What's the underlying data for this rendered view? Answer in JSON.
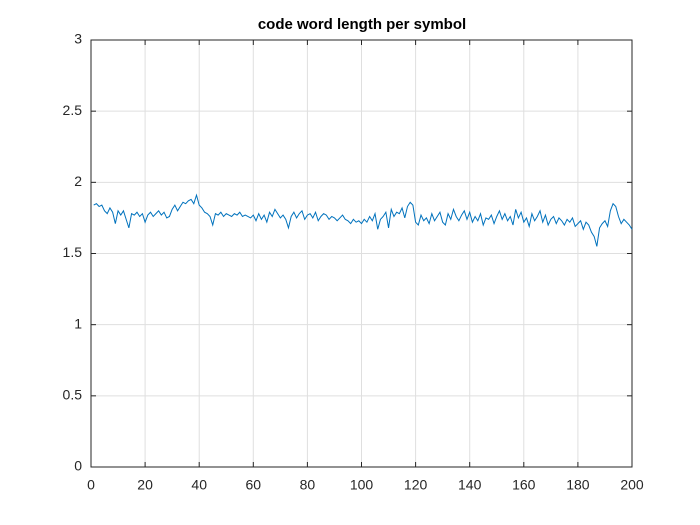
{
  "chart_data": {
    "type": "line",
    "title": "code word length per symbol",
    "x": [
      1,
      2,
      3,
      4,
      5,
      6,
      7,
      8,
      9,
      10,
      11,
      12,
      13,
      14,
      15,
      16,
      17,
      18,
      19,
      20,
      21,
      22,
      23,
      24,
      25,
      26,
      27,
      28,
      29,
      30,
      31,
      32,
      33,
      34,
      35,
      36,
      37,
      38,
      39,
      40,
      41,
      42,
      43,
      44,
      45,
      46,
      47,
      48,
      49,
      50,
      51,
      52,
      53,
      54,
      55,
      56,
      57,
      58,
      59,
      60,
      61,
      62,
      63,
      64,
      65,
      66,
      67,
      68,
      69,
      70,
      71,
      72,
      73,
      74,
      75,
      76,
      77,
      78,
      79,
      80,
      81,
      82,
      83,
      84,
      85,
      86,
      87,
      88,
      89,
      90,
      91,
      92,
      93,
      94,
      95,
      96,
      97,
      98,
      99,
      100,
      101,
      102,
      103,
      104,
      105,
      106,
      107,
      108,
      109,
      110,
      111,
      112,
      113,
      114,
      115,
      116,
      117,
      118,
      119,
      120,
      121,
      122,
      123,
      124,
      125,
      126,
      127,
      128,
      129,
      130,
      131,
      132,
      133,
      134,
      135,
      136,
      137,
      138,
      139,
      140,
      141,
      142,
      143,
      144,
      145,
      146,
      147,
      148,
      149,
      150,
      151,
      152,
      153,
      154,
      155,
      156,
      157,
      158,
      159,
      160,
      161,
      162,
      163,
      164,
      165,
      166,
      167,
      168,
      169,
      170,
      171,
      172,
      173,
      174,
      175,
      176,
      177,
      178,
      179,
      180,
      181,
      182,
      183,
      184,
      185,
      186,
      187,
      188,
      189,
      190,
      191,
      192,
      193,
      194,
      195,
      196,
      197,
      198,
      199,
      200
    ],
    "series": [
      {
        "color": "#0072bd",
        "values": [
          1.84,
          1.85,
          1.83,
          1.84,
          1.8,
          1.78,
          1.82,
          1.79,
          1.71,
          1.8,
          1.77,
          1.8,
          1.74,
          1.68,
          1.78,
          1.77,
          1.79,
          1.76,
          1.78,
          1.72,
          1.77,
          1.79,
          1.76,
          1.78,
          1.8,
          1.77,
          1.79,
          1.75,
          1.76,
          1.81,
          1.84,
          1.8,
          1.83,
          1.86,
          1.85,
          1.87,
          1.88,
          1.85,
          1.91,
          1.84,
          1.82,
          1.79,
          1.78,
          1.76,
          1.7,
          1.78,
          1.77,
          1.79,
          1.76,
          1.78,
          1.77,
          1.76,
          1.78,
          1.77,
          1.79,
          1.76,
          1.77,
          1.76,
          1.75,
          1.77,
          1.73,
          1.78,
          1.74,
          1.77,
          1.72,
          1.79,
          1.76,
          1.81,
          1.78,
          1.75,
          1.77,
          1.74,
          1.68,
          1.76,
          1.79,
          1.75,
          1.78,
          1.8,
          1.74,
          1.77,
          1.78,
          1.75,
          1.79,
          1.73,
          1.76,
          1.78,
          1.77,
          1.74,
          1.76,
          1.75,
          1.73,
          1.75,
          1.77,
          1.74,
          1.73,
          1.71,
          1.74,
          1.72,
          1.73,
          1.71,
          1.74,
          1.72,
          1.76,
          1.73,
          1.78,
          1.67,
          1.74,
          1.76,
          1.79,
          1.68,
          1.81,
          1.76,
          1.79,
          1.78,
          1.82,
          1.75,
          1.83,
          1.86,
          1.84,
          1.72,
          1.7,
          1.77,
          1.73,
          1.75,
          1.71,
          1.78,
          1.73,
          1.76,
          1.79,
          1.72,
          1.7,
          1.78,
          1.74,
          1.81,
          1.76,
          1.73,
          1.77,
          1.8,
          1.74,
          1.79,
          1.72,
          1.76,
          1.73,
          1.78,
          1.7,
          1.75,
          1.74,
          1.77,
          1.71,
          1.76,
          1.8,
          1.74,
          1.78,
          1.73,
          1.76,
          1.7,
          1.81,
          1.75,
          1.79,
          1.72,
          1.75,
          1.69,
          1.78,
          1.73,
          1.76,
          1.8,
          1.72,
          1.77,
          1.7,
          1.74,
          1.76,
          1.71,
          1.75,
          1.73,
          1.7,
          1.74,
          1.72,
          1.75,
          1.69,
          1.71,
          1.73,
          1.67,
          1.72,
          1.7,
          1.65,
          1.62,
          1.55,
          1.68,
          1.71,
          1.73,
          1.69,
          1.8,
          1.85,
          1.83,
          1.76,
          1.71,
          1.74,
          1.72,
          1.7,
          1.67
        ]
      }
    ],
    "xlim": [
      0,
      200
    ],
    "xticks": [
      0,
      20,
      40,
      60,
      80,
      100,
      120,
      140,
      160,
      180,
      200
    ],
    "ylim": [
      0,
      3
    ],
    "yticks": [
      0,
      0.5,
      1,
      1.5,
      2,
      2.5,
      3
    ],
    "grid": true
  }
}
